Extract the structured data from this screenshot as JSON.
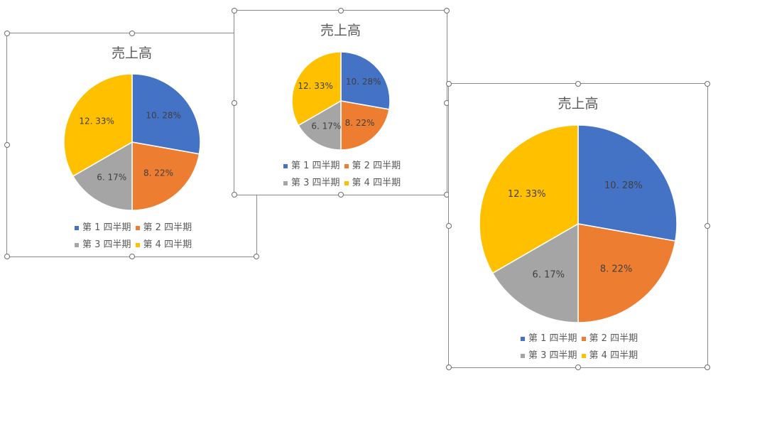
{
  "charts": [
    {
      "title": "売上高",
      "legend": [
        "第 1 四半期",
        "第 2 四半期",
        "第 3 四半期",
        "第 4 四半期"
      ]
    },
    {
      "title": "売上高",
      "legend": [
        "第 1 四半期",
        "第 2 四半期",
        "第 3 四半期",
        "第 4 四半期"
      ]
    },
    {
      "title": "売上高",
      "legend": [
        "第 1 四半期",
        "第 2 四半期",
        "第 3 四半期",
        "第 4 四半期"
      ]
    }
  ],
  "chart_data": [
    {
      "type": "pie",
      "title": "売上高",
      "categories": [
        "第 1 四半期",
        "第 2 四半期",
        "第 3 四半期",
        "第 4 四半期"
      ],
      "values": [
        10.28,
        8.22,
        6.17,
        12.33
      ],
      "labels": [
        "10. 28%",
        "8. 22%",
        "6. 17%",
        "12. 33%"
      ],
      "colors": [
        "#4472C4",
        "#ED7D31",
        "#A5A5A5",
        "#FFC000"
      ],
      "legend": "bottom"
    },
    {
      "type": "pie",
      "title": "売上高",
      "categories": [
        "第 1 四半期",
        "第 2 四半期",
        "第 3 四半期",
        "第 4 四半期"
      ],
      "values": [
        10.28,
        8.22,
        6.17,
        12.33
      ],
      "labels": [
        "10. 28%",
        "8. 22%",
        "6. 17%",
        "12. 33%"
      ],
      "colors": [
        "#4472C4",
        "#ED7D31",
        "#A5A5A5",
        "#FFC000"
      ],
      "legend": "bottom"
    },
    {
      "type": "pie",
      "title": "売上高",
      "categories": [
        "第 1 四半期",
        "第 2 四半期",
        "第 3 四半期",
        "第 4 四半期"
      ],
      "values": [
        10.28,
        8.22,
        6.17,
        12.33
      ],
      "labels": [
        "10. 28%",
        "8. 22%",
        "6. 17%",
        "12. 33%"
      ],
      "colors": [
        "#4472C4",
        "#ED7D31",
        "#A5A5A5",
        "#FFC000"
      ],
      "legend": "bottom"
    }
  ]
}
